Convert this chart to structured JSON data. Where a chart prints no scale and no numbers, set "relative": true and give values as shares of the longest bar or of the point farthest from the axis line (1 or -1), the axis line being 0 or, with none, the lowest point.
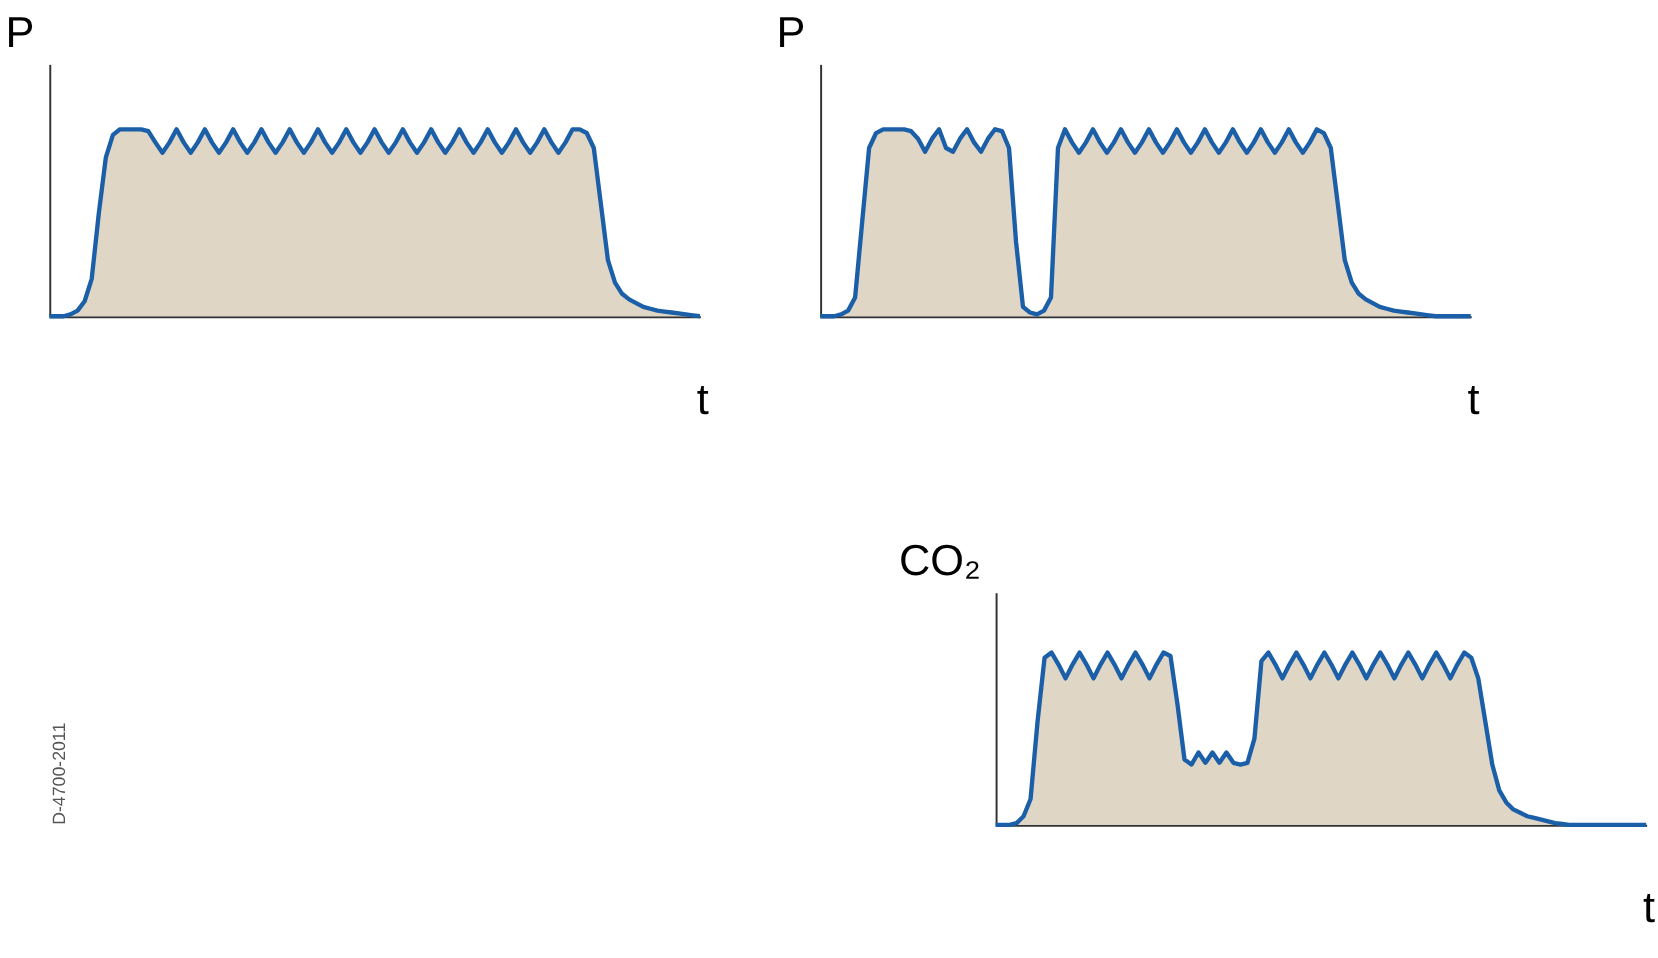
{
  "chart_data": [
    {
      "type": "area",
      "relative": true,
      "ylabel": "P",
      "xlabel": "t",
      "annotations": [
        "D-4700-2011"
      ],
      "categories": [
        null,
        null,
        null,
        null,
        null,
        null,
        null,
        null,
        null,
        null,
        null,
        null,
        null,
        null,
        null,
        null,
        null,
        null,
        null,
        null,
        null,
        null,
        null,
        null,
        null,
        null,
        null,
        null,
        null,
        null,
        null,
        null,
        null,
        null,
        null,
        null,
        null,
        null,
        null,
        null,
        null,
        null,
        null,
        null,
        null,
        null,
        null,
        null,
        null,
        null,
        null,
        null,
        null,
        null,
        null,
        null,
        null,
        null,
        null,
        null,
        null,
        null,
        null,
        null,
        null,
        null,
        null,
        null,
        null,
        null,
        null,
        null,
        null,
        null,
        null,
        null,
        null,
        null,
        null,
        null,
        null,
        null,
        null,
        null,
        null,
        null,
        null,
        null,
        null,
        null,
        null,
        null,
        null
      ],
      "series": [
        {
          "color": "#1a5fa8",
          "values": [
            0,
            0,
            0,
            0.01,
            0.03,
            0.08,
            0.2,
            0.55,
            0.85,
            0.97,
            1,
            1,
            1,
            1,
            0.99,
            0.93,
            0.875,
            0.93,
            1,
            0.93,
            0.875,
            0.93,
            1,
            0.93,
            0.875,
            0.93,
            1,
            0.93,
            0.875,
            0.93,
            1,
            0.93,
            0.875,
            0.93,
            1,
            0.93,
            0.875,
            0.93,
            1,
            0.93,
            0.875,
            0.93,
            1,
            0.93,
            0.875,
            0.93,
            1,
            0.93,
            0.875,
            0.93,
            1,
            0.93,
            0.875,
            0.93,
            1,
            0.93,
            0.875,
            0.93,
            1,
            0.93,
            0.875,
            0.93,
            1,
            0.93,
            0.875,
            0.93,
            1,
            0.93,
            0.875,
            0.93,
            1,
            0.93,
            0.875,
            0.93,
            1,
            1,
            0.98,
            0.9,
            0.6,
            0.3,
            0.18,
            0.12,
            0.09,
            0.07,
            0.05,
            0.04,
            0.03,
            0.025,
            0.02,
            0.015,
            0.01,
            0.005,
            0
          ]
        }
      ]
    },
    {
      "type": "area",
      "relative": true,
      "ylabel": "P",
      "xlabel": "t",
      "categories": [
        null,
        null,
        null,
        null,
        null,
        null,
        null,
        null,
        null,
        null,
        null,
        null,
        null,
        null,
        null,
        null,
        null,
        null,
        null,
        null,
        null,
        null,
        null,
        null,
        null,
        null,
        null,
        null,
        null,
        null,
        null,
        null,
        null,
        null,
        null,
        null,
        null,
        null,
        null,
        null,
        null,
        null,
        null,
        null,
        null,
        null,
        null,
        null,
        null,
        null,
        null,
        null,
        null,
        null,
        null,
        null,
        null,
        null,
        null,
        null,
        null,
        null,
        null,
        null,
        null,
        null,
        null,
        null,
        null,
        null,
        null,
        null,
        null,
        null,
        null,
        null,
        null,
        null,
        null,
        null,
        null,
        null,
        null,
        null,
        null,
        null,
        null,
        null,
        null,
        null,
        null,
        null,
        null,
        null
      ],
      "series": [
        {
          "color": "#1a5fa8",
          "values": [
            0,
            0,
            0,
            0.01,
            0.03,
            0.1,
            0.5,
            0.9,
            0.98,
            1,
            1,
            1,
            1,
            0.99,
            0.95,
            0.88,
            0.95,
            1,
            0.9,
            0.88,
            0.95,
            1,
            0.93,
            0.88,
            0.95,
            1,
            0.99,
            0.9,
            0.4,
            0.05,
            0.02,
            0.01,
            0.03,
            0.1,
            0.9,
            1,
            0.93,
            0.875,
            0.93,
            1,
            0.93,
            0.875,
            0.93,
            1,
            0.93,
            0.875,
            0.93,
            1,
            0.93,
            0.875,
            0.93,
            1,
            0.93,
            0.875,
            0.93,
            1,
            0.93,
            0.875,
            0.93,
            1,
            0.93,
            0.875,
            0.93,
            1,
            0.93,
            0.875,
            0.93,
            1,
            0.93,
            0.875,
            0.93,
            1,
            0.98,
            0.9,
            0.6,
            0.3,
            0.18,
            0.12,
            0.09,
            0.07,
            0.05,
            0.04,
            0.03,
            0.025,
            0.02,
            0.015,
            0.01,
            0.005,
            0,
            0,
            0,
            0,
            0,
            0
          ]
        }
      ]
    },
    {
      "type": "area",
      "relative": true,
      "ylabel": "CO₂",
      "xlabel": "t",
      "categories": [
        null,
        null,
        null,
        null,
        null,
        null,
        null,
        null,
        null,
        null,
        null,
        null,
        null,
        null,
        null,
        null,
        null,
        null,
        null,
        null,
        null,
        null,
        null,
        null,
        null,
        null,
        null,
        null,
        null,
        null,
        null,
        null,
        null,
        null,
        null,
        null,
        null,
        null,
        null,
        null,
        null,
        null,
        null,
        null,
        null,
        null,
        null,
        null,
        null,
        null,
        null,
        null,
        null,
        null,
        null,
        null,
        null,
        null,
        null,
        null,
        null,
        null,
        null,
        null,
        null,
        null,
        null,
        null,
        null,
        null,
        null,
        null,
        null,
        null,
        null,
        null,
        null,
        null,
        null,
        null,
        null,
        null,
        null,
        null,
        null,
        null,
        null,
        null,
        null,
        null,
        null,
        null,
        null,
        null
      ],
      "series": [
        {
          "color": "#1a5fa8",
          "values": [
            0,
            0,
            0,
            0.01,
            0.05,
            0.15,
            0.6,
            0.97,
            1,
            0.93,
            0.85,
            0.93,
            1,
            0.93,
            0.85,
            0.93,
            1,
            0.93,
            0.85,
            0.93,
            1,
            0.93,
            0.85,
            0.93,
            1,
            0.98,
            0.7,
            0.38,
            0.35,
            0.42,
            0.36,
            0.42,
            0.36,
            0.42,
            0.36,
            0.35,
            0.36,
            0.5,
            0.95,
            1,
            0.93,
            0.85,
            0.93,
            1,
            0.93,
            0.85,
            0.93,
            1,
            0.93,
            0.85,
            0.93,
            1,
            0.93,
            0.85,
            0.93,
            1,
            0.93,
            0.85,
            0.93,
            1,
            0.93,
            0.85,
            0.93,
            1,
            0.93,
            0.85,
            0.93,
            1,
            0.97,
            0.85,
            0.6,
            0.35,
            0.2,
            0.13,
            0.09,
            0.07,
            0.05,
            0.04,
            0.03,
            0.02,
            0.01,
            0.005,
            0,
            0,
            0,
            0,
            0,
            0,
            0,
            0,
            0,
            0,
            0,
            0
          ]
        }
      ]
    }
  ]
}
